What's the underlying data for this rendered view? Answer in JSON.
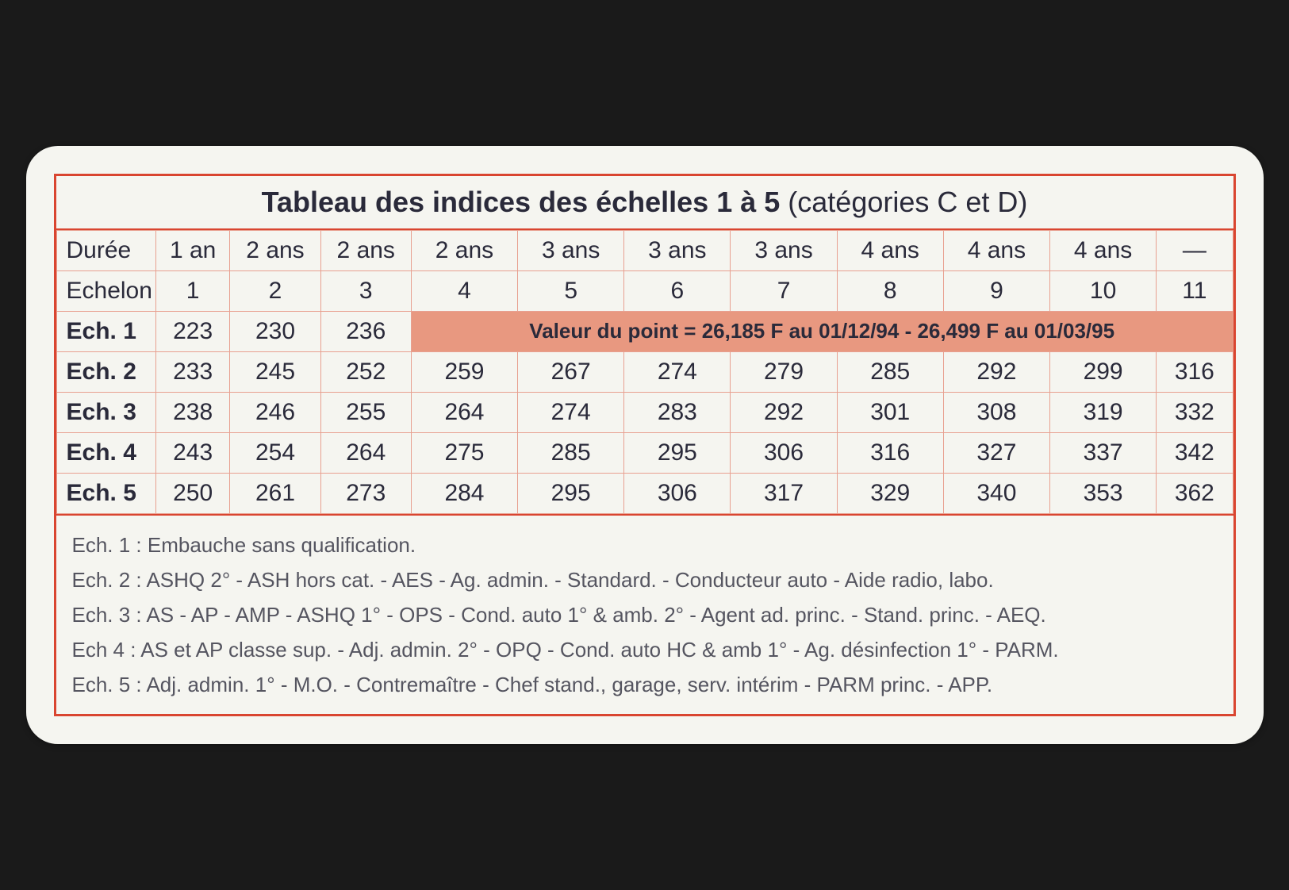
{
  "title": {
    "bold_part": "Tableau des indices des échelles 1 à 5",
    "normal_part": " (catégories C et D)"
  },
  "table": {
    "duree_label": "Durée",
    "duree_values": [
      "1 an",
      "2 ans",
      "2 ans",
      "2 ans",
      "3 ans",
      "3 ans",
      "3 ans",
      "4 ans",
      "4 ans",
      "4 ans",
      "—"
    ],
    "echelon_label": "Echelon",
    "echelon_values": [
      "1",
      "2",
      "3",
      "4",
      "5",
      "6",
      "7",
      "8",
      "9",
      "10",
      "11"
    ],
    "rows": [
      {
        "label": "Ech. 1",
        "values": [
          "223",
          "230",
          "236"
        ],
        "highlight_text": "Valeur du point = 26,185 F au 01/12/94 - 26,499 F au 01/03/95"
      },
      {
        "label": "Ech. 2",
        "values": [
          "233",
          "245",
          "252",
          "259",
          "267",
          "274",
          "279",
          "285",
          "292",
          "299",
          "316"
        ]
      },
      {
        "label": "Ech. 3",
        "values": [
          "238",
          "246",
          "255",
          "264",
          "274",
          "283",
          "292",
          "301",
          "308",
          "319",
          "332"
        ]
      },
      {
        "label": "Ech. 4",
        "values": [
          "243",
          "254",
          "264",
          "275",
          "285",
          "295",
          "306",
          "316",
          "327",
          "337",
          "342"
        ]
      },
      {
        "label": "Ech. 5",
        "values": [
          "250",
          "261",
          "273",
          "284",
          "295",
          "306",
          "317",
          "329",
          "340",
          "353",
          "362"
        ]
      }
    ]
  },
  "legend": [
    "Ech. 1 : Embauche sans qualification.",
    "Ech. 2 : ASHQ 2° - ASH hors cat. - AES - Ag. admin. - Standard. - Conducteur auto - Aide radio, labo.",
    "Ech. 3 : AS - AP - AMP - ASHQ 1° - OPS - Cond. auto 1° & amb. 2° - Agent ad. princ. - Stand. princ. - AEQ.",
    "Ech 4 : AS et AP classe sup. - Adj. admin. 2° - OPQ - Cond. auto HC & amb 1° - Ag. désinfection 1° - PARM.",
    "Ech. 5 : Adj. admin. 1° - M.O. - Contremaître - Chef stand., garage, serv. intérim - PARM princ. - APP."
  ],
  "colors": {
    "border": "#d94530",
    "cell_border": "#e8a090",
    "highlight_bg": "#e89880",
    "card_bg": "#f5f5f0",
    "page_bg": "#1a1a1a",
    "text": "#2a2a3a",
    "legend_text": "#555560"
  },
  "fonts": {
    "title_size": 36,
    "cell_size": 30,
    "highlight_size": 26,
    "legend_size": 26
  }
}
